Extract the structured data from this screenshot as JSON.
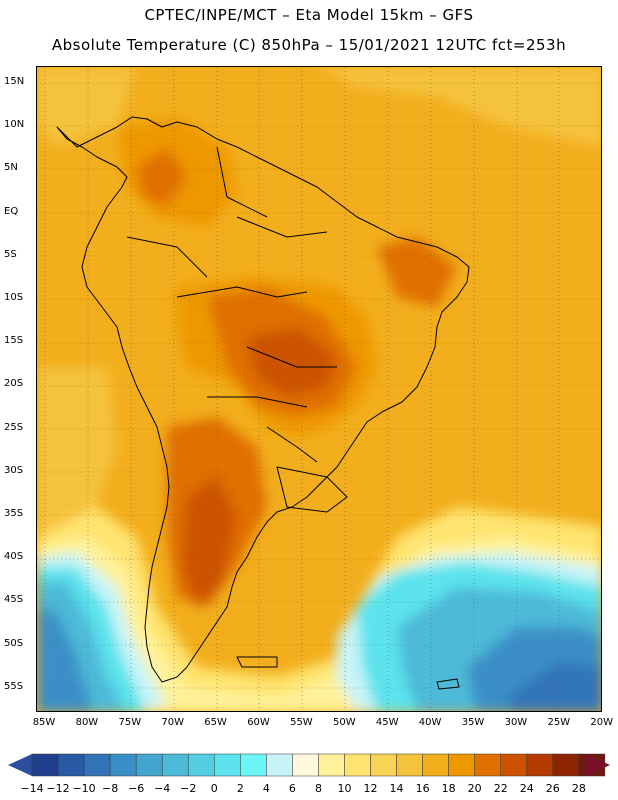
{
  "header": {
    "line1": "CPTEC/INPE/MCT –  Eta Model 15km – GFS",
    "line2": "Absolute Temperature (C) 850hPa – 15/01/2021 12UTC fct=253h"
  },
  "map": {
    "region": "South America",
    "lat_labels": [
      "15N",
      "10N",
      "5N",
      "EQ",
      "5S",
      "10S",
      "15S",
      "20S",
      "25S",
      "30S",
      "35S",
      "40S",
      "45S",
      "50S",
      "55S"
    ],
    "lon_labels": [
      "85W",
      "80W",
      "75W",
      "70W",
      "65W",
      "60W",
      "55W",
      "50W",
      "45W",
      "40W",
      "35W",
      "30W",
      "25W",
      "20W"
    ]
  },
  "colorbar": {
    "labels": [
      "-14",
      "-12",
      "-10",
      "-8",
      "-6",
      "-4",
      "-2",
      "0",
      "2",
      "4",
      "6",
      "8",
      "10",
      "12",
      "14",
      "16",
      "18",
      "20",
      "22",
      "24",
      "26",
      "28"
    ],
    "colors": [
      "#1f3f8c",
      "#2a5aa6",
      "#3374b8",
      "#3a8fc6",
      "#44a6cf",
      "#4dbad8",
      "#52cde2",
      "#5ce3ec",
      "#6cf5f5",
      "#c8f4f8",
      "#fff8dc",
      "#fff29a",
      "#ffe470",
      "#f9d356",
      "#f5c23c",
      "#f2ae1c",
      "#ee9800",
      "#e07000",
      "#cc5200",
      "#b33a00",
      "#8e2500",
      "#6e1a10"
    ],
    "under_color": "#2d4e9e",
    "over_color": "#7a0f2a"
  }
}
